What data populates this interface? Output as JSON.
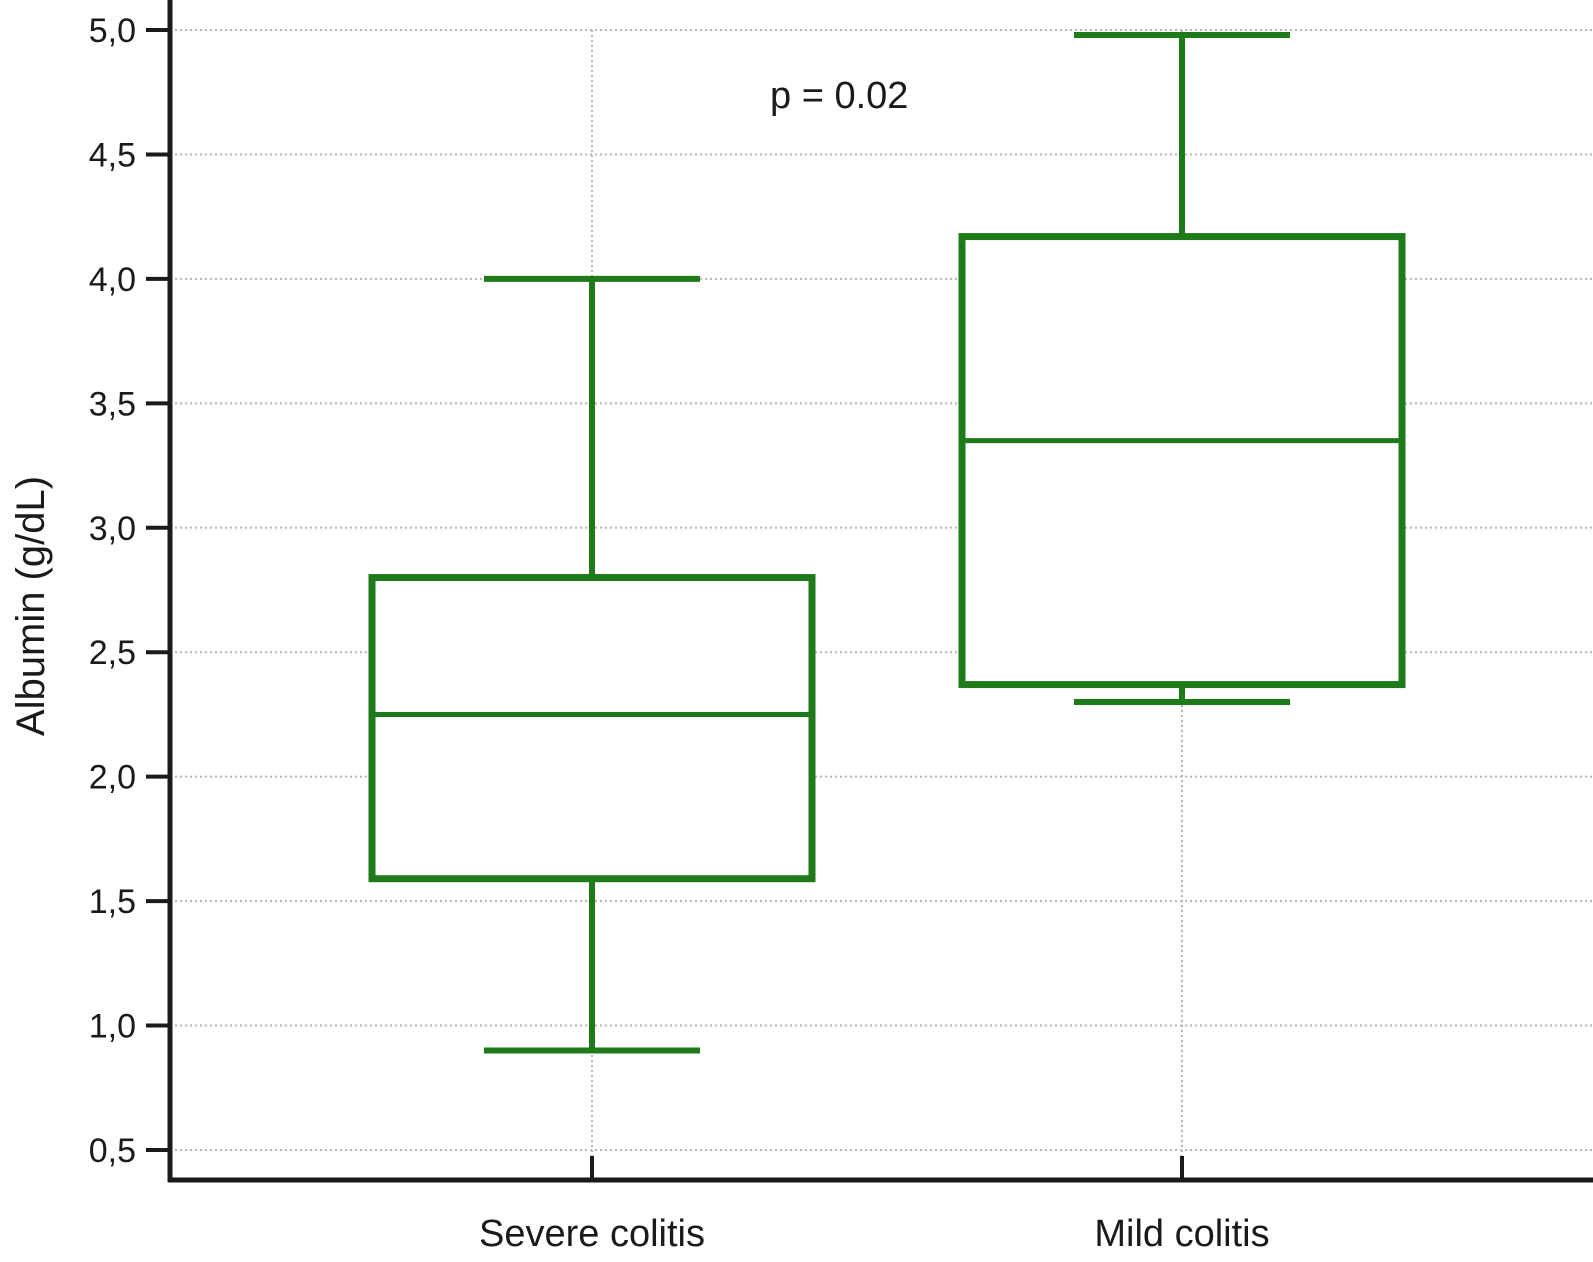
{
  "chart_data": {
    "type": "box",
    "title": "",
    "xlabel": "",
    "ylabel": "Albumin (g/dL)",
    "ylim": [
      0.5,
      5.0
    ],
    "yticks": [
      "0,5",
      "1,0",
      "1,5",
      "2,0",
      "2,5",
      "3,0",
      "3,5",
      "4,0",
      "4,5",
      "5,0"
    ],
    "ytick_values": [
      0.5,
      1.0,
      1.5,
      2.0,
      2.5,
      3.0,
      3.5,
      4.0,
      4.5,
      5.0
    ],
    "categories": [
      "Severe colitis",
      "Mild colitis"
    ],
    "boxes": [
      {
        "category": "Severe colitis",
        "min": 0.9,
        "q1": 1.59,
        "median": 2.25,
        "q3": 2.8,
        "max": 4.0
      },
      {
        "category": "Mild colitis",
        "min": 2.3,
        "q1": 2.37,
        "median": 3.35,
        "q3": 4.17,
        "max": 4.98
      }
    ],
    "annotation": "p = 0.02",
    "grid": true,
    "grid_style": "dotted",
    "box_color": "#1f7a1a",
    "axis_color": "#1a1a1a",
    "grid_color": "#b5b5b5"
  }
}
